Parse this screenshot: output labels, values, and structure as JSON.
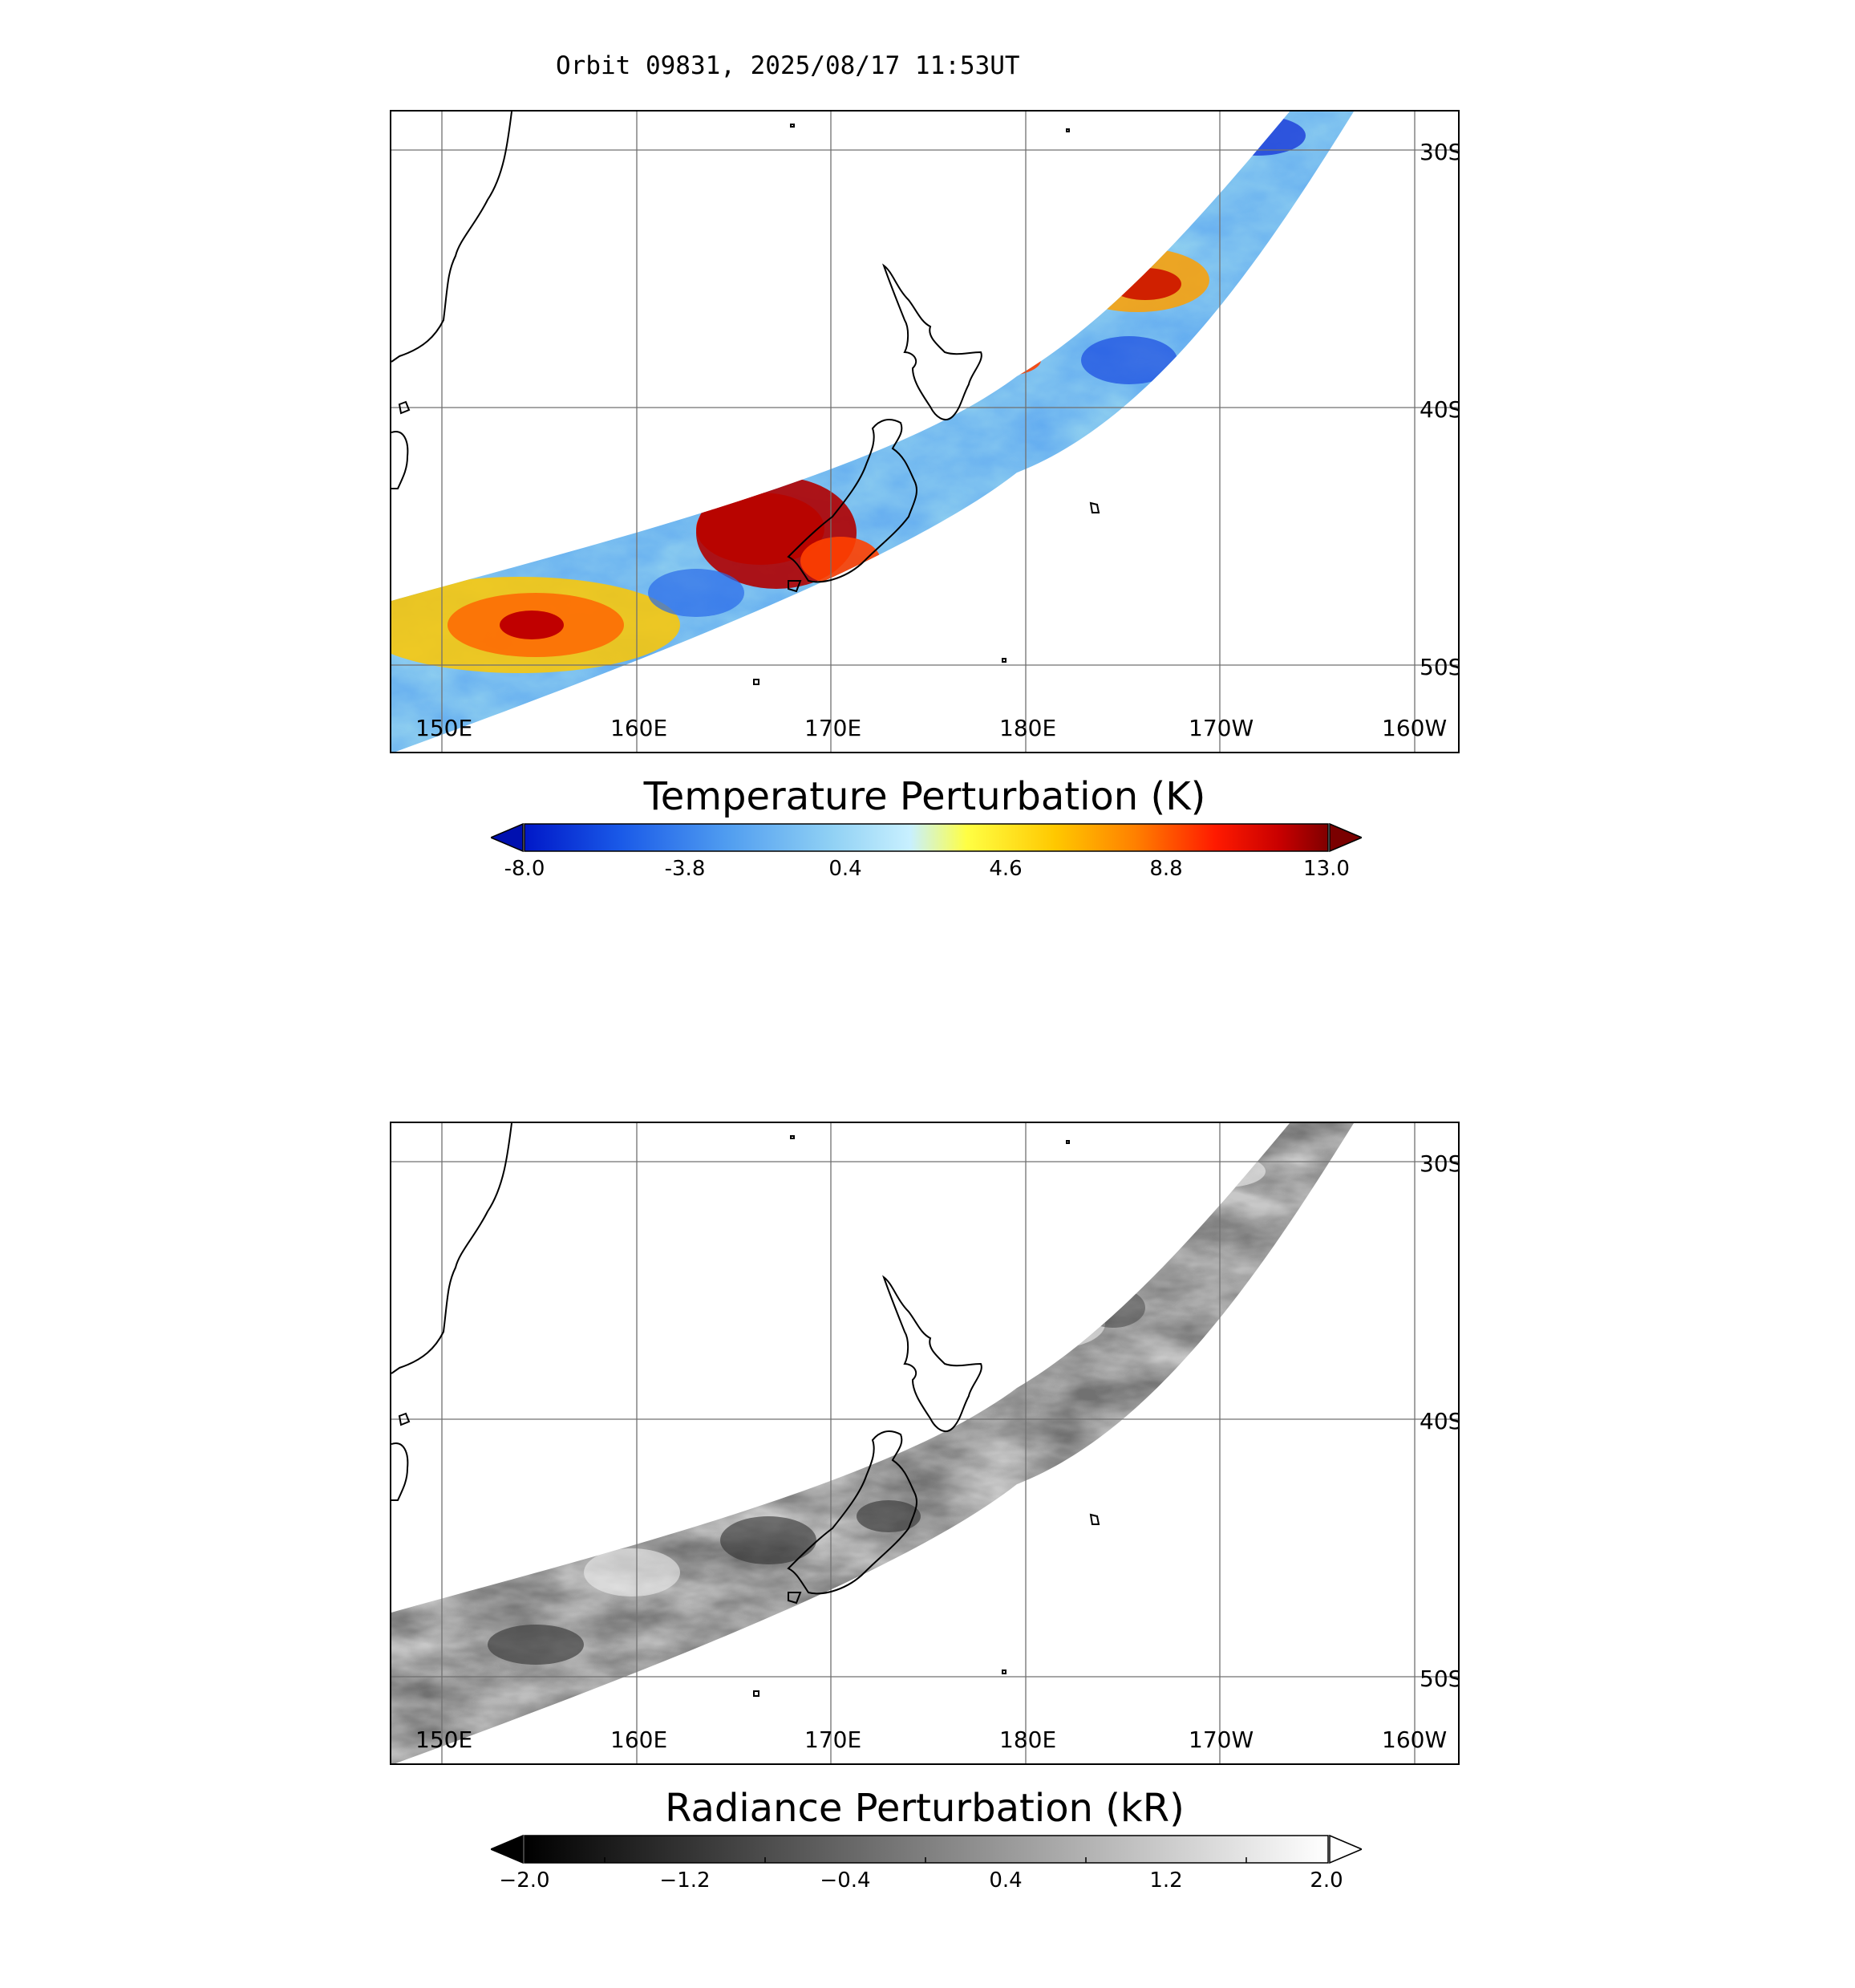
{
  "header": {
    "orbit": "Orbit 09831, 2025/08/17 11:53UT"
  },
  "map": {
    "lat_labels": [
      "30S",
      "40S",
      "50S"
    ],
    "lon_labels": [
      "150E",
      "160E",
      "170E",
      "180E",
      "170W",
      "160W"
    ]
  },
  "temperature": {
    "colorbar_title": "Temperature Perturbation (K)",
    "ticks": [
      "-8.0",
      "-3.8",
      "0.4",
      "4.6",
      "8.8",
      "13.0"
    ],
    "colors": [
      "#0018c8",
      "#1a5ae8",
      "#4f9cf0",
      "#8fd0f4",
      "#c8f0ff",
      "#ffff44",
      "#ffc800",
      "#ff8000",
      "#ff1a00",
      "#c80000",
      "#800000"
    ],
    "under_color": "#0010b0",
    "over_color": "#7a0000"
  },
  "radiance": {
    "colorbar_title": "Radiance Perturbation (kR)",
    "ticks": [
      "−2.0",
      "−1.2",
      "−0.4",
      "0.4",
      "1.2",
      "2.0"
    ],
    "colors": [
      "#000000",
      "#ffffff"
    ],
    "under_color": "#000000",
    "over_color": "#ffffff"
  }
}
